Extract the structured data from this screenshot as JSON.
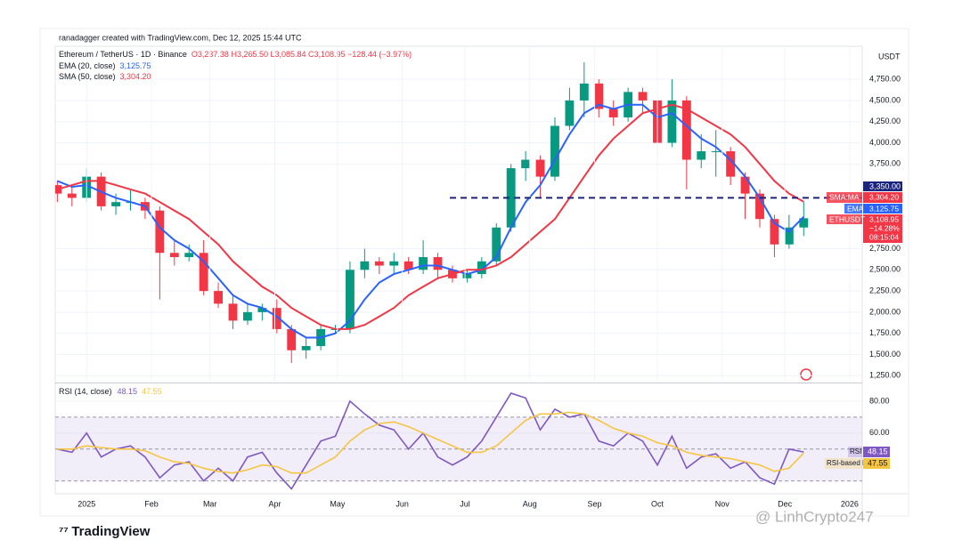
{
  "header": "ranadagger created with TradingView.com, Dec 12, 2025 15:44 UTC",
  "brand": "TradingView",
  "watermark": "@ LinhCrypto247",
  "chart_data": [
    {
      "type": "candlestick",
      "title": "Ethereum / TetherUS · 1D · Binance",
      "ohlc_text": "O3,237.38 H3,265.50 L3,085.84 C3,108.95 −128.44 (−3.97%)",
      "unit": "USDT",
      "up_color": "#089981",
      "down_color": "#f23645",
      "x": [
        -14,
        -7,
        0,
        7,
        14,
        21,
        28,
        35,
        42,
        49,
        56,
        63,
        70,
        77,
        84,
        91,
        98,
        105,
        112,
        119,
        126,
        133,
        140,
        147,
        154,
        161,
        168,
        175,
        182,
        189,
        196,
        203,
        210,
        217,
        224,
        231,
        238,
        245,
        252,
        259,
        266,
        273,
        280,
        287,
        294,
        301,
        308,
        315,
        322,
        329,
        336,
        343
      ],
      "open": [
        3500,
        3400,
        3350,
        3600,
        3250,
        3300,
        3300,
        3200,
        2700,
        2650,
        2700,
        2250,
        2100,
        1900,
        2000,
        2050,
        1800,
        1550,
        1600,
        1800,
        1800,
        2500,
        2600,
        2550,
        2600,
        2500,
        2650,
        2500,
        2400,
        2450,
        2600,
        3000,
        3700,
        3800,
        3600,
        4200,
        4500,
        4700,
        4400,
        4300,
        4600,
        4500,
        4000,
        4500,
        3800,
        3900,
        3900,
        3600,
        3400,
        3100,
        2800,
        3000
      ],
      "high": [
        3550,
        3500,
        3700,
        3650,
        3400,
        3450,
        3350,
        3250,
        2850,
        2800,
        2850,
        2350,
        2200,
        2100,
        2100,
        2150,
        1850,
        1700,
        1850,
        1850,
        2600,
        2750,
        2650,
        2700,
        2650,
        2850,
        2700,
        2550,
        2500,
        2650,
        3050,
        3750,
        3900,
        3850,
        4300,
        4650,
        4950,
        4750,
        4500,
        4650,
        4650,
        4550,
        4750,
        4550,
        4100,
        4150,
        3950,
        3650,
        3450,
        3150,
        3150,
        3300
      ],
      "low": [
        3300,
        3250,
        3300,
        3200,
        3150,
        3200,
        3100,
        2150,
        2550,
        2600,
        2200,
        2050,
        1800,
        1850,
        1900,
        1750,
        1400,
        1450,
        1550,
        1750,
        1750,
        2400,
        2450,
        2450,
        2450,
        2450,
        2400,
        2350,
        2350,
        2400,
        2550,
        2950,
        3550,
        3350,
        3550,
        4150,
        4300,
        4300,
        4200,
        4250,
        4350,
        3850,
        3950,
        3450,
        3700,
        3600,
        3500,
        3100,
        3000,
        2650,
        2750,
        2900
      ],
      "close": [
        3400,
        3350,
        3600,
        3250,
        3300,
        3300,
        3200,
        2700,
        2650,
        2700,
        2250,
        2100,
        1900,
        2000,
        2050,
        1800,
        1550,
        1600,
        1800,
        1800,
        2500,
        2600,
        2550,
        2600,
        2500,
        2650,
        2500,
        2400,
        2450,
        2600,
        3000,
        3700,
        3800,
        3600,
        4200,
        4500,
        4700,
        4400,
        4300,
        4600,
        4500,
        4000,
        4500,
        3800,
        3900,
        3900,
        3600,
        3400,
        3100,
        2800,
        3000,
        3108.95
      ],
      "series": [
        {
          "name": "EMA (20, close)",
          "legend_value": "3,125.75",
          "color": "#2962ff",
          "values": [
            3550,
            3480,
            3500,
            3420,
            3350,
            3300,
            3250,
            3000,
            2850,
            2750,
            2600,
            2400,
            2200,
            2100,
            2050,
            1950,
            1800,
            1700,
            1700,
            1750,
            1900,
            2150,
            2350,
            2450,
            2500,
            2550,
            2550,
            2500,
            2450,
            2500,
            2650,
            3000,
            3300,
            3500,
            3800,
            4100,
            4350,
            4450,
            4400,
            4450,
            4450,
            4300,
            4350,
            4200,
            4050,
            3950,
            3800,
            3600,
            3350,
            3050,
            2950,
            3125.75
          ]
        },
        {
          "name": "SMA (50, close)",
          "legend_value": "3,304.20",
          "color": "#f23645",
          "values": [
            3450,
            3500,
            3550,
            3550,
            3500,
            3450,
            3400,
            3300,
            3200,
            3100,
            2950,
            2800,
            2600,
            2450,
            2300,
            2200,
            2050,
            1950,
            1850,
            1800,
            1800,
            1850,
            1950,
            2050,
            2200,
            2300,
            2400,
            2450,
            2500,
            2500,
            2550,
            2650,
            2800,
            2950,
            3100,
            3350,
            3600,
            3850,
            4050,
            4200,
            4350,
            4400,
            4450,
            4400,
            4300,
            4200,
            4100,
            3950,
            3750,
            3550,
            3400,
            3304.2
          ]
        }
      ],
      "level": {
        "value": 3350,
        "label": "3,350.00",
        "color": "#1a237e"
      },
      "axis_labels": [
        {
          "texts": [
            "SMA:MA",
            "3,304.20"
          ],
          "color": "#f23645"
        },
        {
          "texts": [
            "EMA",
            "3,125.75"
          ],
          "color": "#2962ff"
        },
        {
          "texts": [
            "ETHUSDT",
            "3,108.95",
            "−14.28%",
            "08:15:04"
          ],
          "color": "#f23645"
        }
      ],
      "xlim": [
        -15,
        371
      ],
      "ylim": [
        1190,
        5140
      ],
      "yticks": [
        {
          "value": 4750,
          "label": "4,750.00"
        },
        {
          "value": 4500,
          "label": "4,500.00"
        },
        {
          "value": 4250,
          "label": "4,250.00"
        },
        {
          "value": 4000,
          "label": "4,000.00"
        },
        {
          "value": 3750,
          "label": "3,750.00"
        },
        {
          "value": 2750,
          "label": "2,750.00"
        },
        {
          "value": 2500,
          "label": "2,500.00"
        },
        {
          "value": 2250,
          "label": "2,250.00"
        },
        {
          "value": 2000,
          "label": "2,000.00"
        },
        {
          "value": 1750,
          "label": "1,750.00"
        },
        {
          "value": 1500,
          "label": "1,500.00"
        },
        {
          "value": 1250,
          "label": "1,250.00"
        }
      ]
    },
    {
      "type": "line",
      "title": "RSI (14, close)",
      "x": [
        -14,
        -7,
        0,
        7,
        14,
        21,
        28,
        35,
        42,
        49,
        56,
        63,
        70,
        77,
        84,
        91,
        98,
        105,
        112,
        119,
        126,
        133,
        140,
        147,
        154,
        161,
        168,
        175,
        182,
        189,
        196,
        203,
        210,
        217,
        224,
        231,
        238,
        245,
        252,
        259,
        266,
        273,
        280,
        287,
        294,
        301,
        308,
        315,
        322,
        329,
        336,
        343
      ],
      "series": [
        {
          "name": "RSI",
          "legend_value": "48.15",
          "axis_label": "RSI",
          "color": "#7e57c2",
          "values": [
            50,
            48,
            60,
            45,
            50,
            52,
            45,
            32,
            40,
            42,
            30,
            38,
            30,
            45,
            48,
            35,
            25,
            40,
            55,
            58,
            80,
            72,
            65,
            62,
            50,
            60,
            45,
            40,
            45,
            55,
            70,
            85,
            82,
            62,
            75,
            70,
            72,
            55,
            52,
            60,
            55,
            40,
            58,
            38,
            45,
            47,
            38,
            42,
            32,
            28,
            50,
            48.15
          ]
        },
        {
          "name": "RSI-based MA",
          "legend_value": "47.55",
          "axis_label": "RSI-based MA",
          "color": "#f5c542",
          "values": [
            50,
            50,
            52,
            51,
            50,
            50,
            49,
            45,
            42,
            41,
            38,
            36,
            35,
            37,
            40,
            39,
            35,
            35,
            40,
            45,
            55,
            62,
            66,
            67,
            64,
            60,
            56,
            52,
            48,
            48,
            52,
            60,
            68,
            72,
            72,
            73,
            72,
            68,
            63,
            60,
            58,
            54,
            52,
            48,
            46,
            45,
            44,
            42,
            40,
            36,
            38,
            47.55
          ]
        }
      ],
      "levels": [
        70,
        50,
        30
      ],
      "band": [
        30,
        70
      ],
      "band_color": "#7e57c2",
      "xlim": [
        -15,
        371
      ],
      "ylim": [
        22,
        90
      ],
      "yticks": [
        {
          "value": 80,
          "label": "80.00"
        },
        {
          "value": 60,
          "label": "60.00"
        }
      ],
      "xticks": [
        {
          "value": 0,
          "label": "2025"
        },
        {
          "value": 31,
          "label": "Feb"
        },
        {
          "value": 59,
          "label": "Mar"
        },
        {
          "value": 90,
          "label": "Apr"
        },
        {
          "value": 120,
          "label": "May"
        },
        {
          "value": 151,
          "label": "Jun"
        },
        {
          "value": 181,
          "label": "Jul"
        },
        {
          "value": 212,
          "label": "Aug"
        },
        {
          "value": 243,
          "label": "Sep"
        },
        {
          "value": 273,
          "label": "Oct"
        },
        {
          "value": 304,
          "label": "Nov"
        },
        {
          "value": 334,
          "label": "Dec"
        },
        {
          "value": 365,
          "label": "2026"
        }
      ]
    }
  ]
}
